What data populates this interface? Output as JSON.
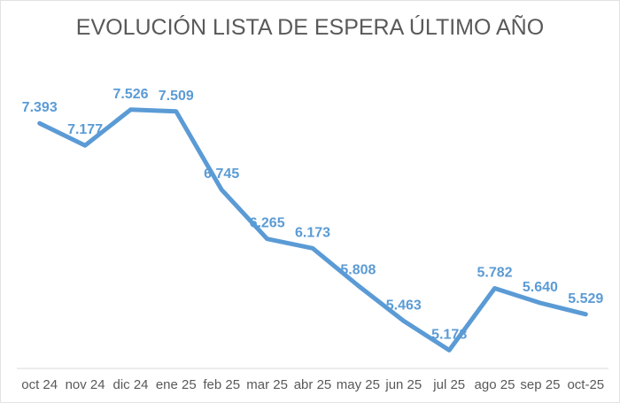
{
  "title": "EVOLUCIÓN LISTA DE ESPERA ÚLTIMO AÑO",
  "chart_data": {
    "type": "line",
    "title": "EVOLUCIÓN LISTA DE ESPERA ÚLTIMO AÑO",
    "categories": [
      "oct 24",
      "nov 24",
      "dic 24",
      "ene 25",
      "feb 25",
      "mar 25",
      "abr 25",
      "may 25",
      "jun 25",
      "jul 25",
      "ago 25",
      "sep 25",
      "oct-25"
    ],
    "values": [
      7393,
      7177,
      7526,
      7509,
      6745,
      6265,
      6173,
      5808,
      5463,
      5178,
      5782,
      5640,
      5529
    ],
    "data_labels": [
      "7.393",
      "7.177",
      "7.526",
      "7.509",
      "6.745",
      "6.265",
      "6.173",
      "5.808",
      "5.463",
      "5.178",
      "5.782",
      "5.640",
      "5.529"
    ],
    "xlabel": "",
    "ylabel": "",
    "ylim": [
      5000,
      8000
    ],
    "grid": false,
    "legend": "none",
    "line_color": "#5B9BD5",
    "label_color": "#5B9BD5",
    "axis_color": "#D9D9D9",
    "tick_label_color": "#595959",
    "title_color": "#595959"
  }
}
